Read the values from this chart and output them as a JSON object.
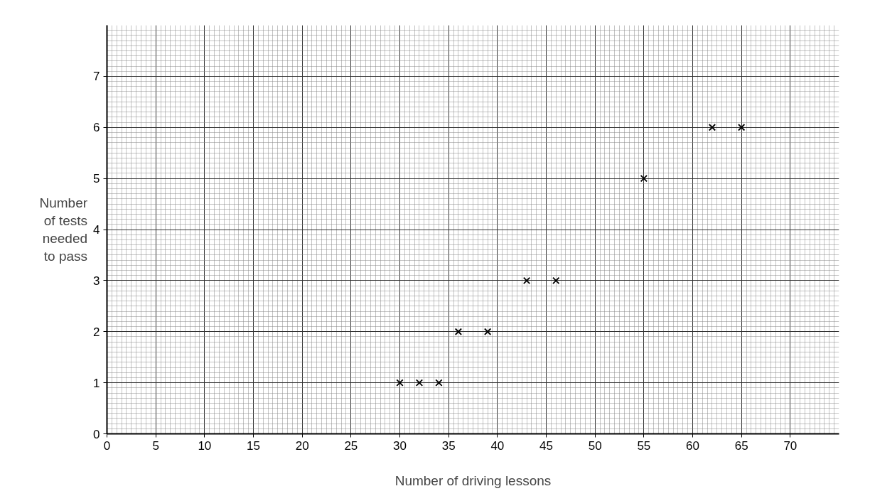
{
  "chart_data": {
    "type": "scatter",
    "xlabel": "Number of driving lessons",
    "ylabel": "Number of tests needed to pass",
    "x": [
      30,
      32,
      34,
      36,
      39,
      43,
      46,
      55,
      62,
      65
    ],
    "values": [
      1,
      1,
      1,
      2,
      2,
      3,
      3,
      5,
      6,
      6
    ],
    "color": "#000000",
    "marker": "cross",
    "xlim": [
      0,
      75
    ],
    "ylim": [
      0,
      8
    ],
    "xticks": [
      0,
      5,
      10,
      15,
      20,
      25,
      30,
      35,
      40,
      45,
      50,
      55,
      60,
      65,
      70
    ],
    "yticks": [
      0,
      1,
      2,
      3,
      4,
      5,
      6,
      7
    ],
    "grid": true
  }
}
